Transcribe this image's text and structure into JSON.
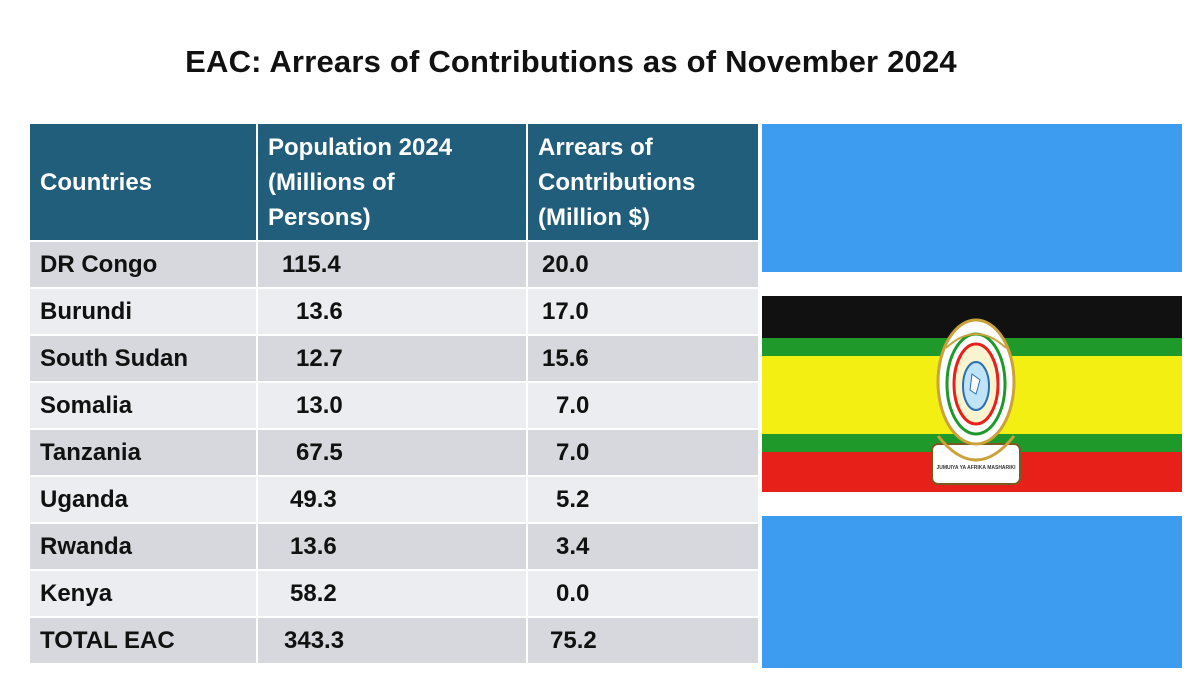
{
  "title": "EAC: Arrears of Contributions as of November 2024",
  "table": {
    "headers": [
      "Countries",
      "Population 2024\n(Millions of\nPersons)",
      "Arrears of\nContributions\n(Million $)"
    ],
    "rows": [
      {
        "country": "DR Congo",
        "population": "115.4",
        "arrears": "20.0"
      },
      {
        "country": "Burundi",
        "population": "13.6",
        "arrears": "17.0"
      },
      {
        "country": "South Sudan",
        "population": "12.7",
        "arrears": "15.6"
      },
      {
        "country": "Somalia",
        "population": "13.0",
        "arrears": "7.0"
      },
      {
        "country": "Tanzania",
        "population": "67.5",
        "arrears": "7.0"
      },
      {
        "country": "Uganda",
        "population": "49.3",
        "arrears": "5.2"
      },
      {
        "country": "Rwanda",
        "population": "13.6",
        "arrears": "3.4"
      },
      {
        "country": "Kenya",
        "population": "58.2",
        "arrears": "0.0"
      },
      {
        "country": "TOTAL EAC",
        "population": "343.3",
        "arrears": "75.2"
      }
    ]
  },
  "flag": {
    "name": "East African Community flag",
    "emblem_text": "JUMUIYA YA AFRIKA MASHARIKI",
    "colors": {
      "blue": "#3d9bf0",
      "white": "#ffffff",
      "black": "#111111",
      "green": "#1f9a2a",
      "yellow": "#f4ef12",
      "red": "#e8201a"
    }
  }
}
